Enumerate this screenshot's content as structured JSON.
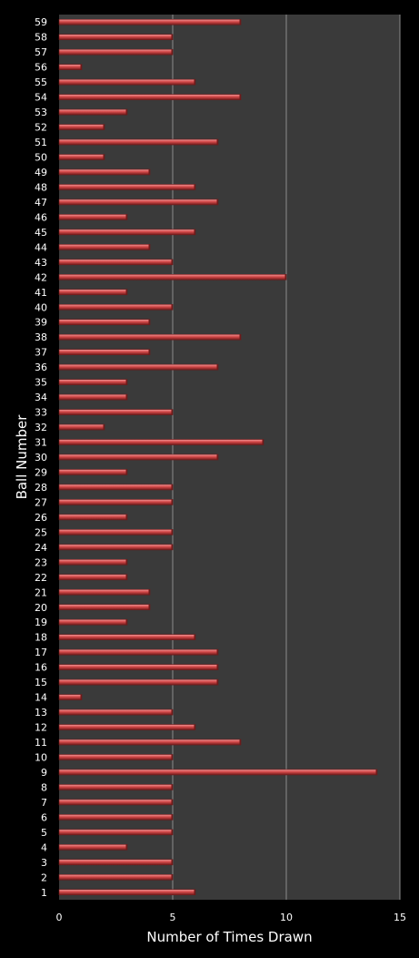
{
  "chart_data": {
    "type": "bar",
    "orientation": "horizontal",
    "xlabel": "Number of Times Drawn",
    "ylabel": "Ball Number",
    "xlim": [
      0,
      15
    ],
    "xticks": [
      "0",
      "5",
      "10",
      "15"
    ],
    "grid": "vertical",
    "legend": "none",
    "categories": [
      "1",
      "2",
      "3",
      "4",
      "5",
      "6",
      "7",
      "8",
      "9",
      "10",
      "11",
      "12",
      "13",
      "14",
      "15",
      "16",
      "17",
      "18",
      "19",
      "20",
      "21",
      "22",
      "23",
      "24",
      "25",
      "26",
      "27",
      "28",
      "29",
      "30",
      "31",
      "32",
      "33",
      "34",
      "35",
      "36",
      "37",
      "38",
      "39",
      "40",
      "41",
      "42",
      "43",
      "44",
      "45",
      "46",
      "47",
      "48",
      "49",
      "50",
      "51",
      "52",
      "53",
      "54",
      "55",
      "56",
      "57",
      "58",
      "59"
    ],
    "values": [
      6,
      5,
      5,
      3,
      5,
      5,
      5,
      5,
      14,
      5,
      8,
      6,
      5,
      1,
      7,
      7,
      7,
      6,
      3,
      4,
      4,
      3,
      3,
      5,
      5,
      3,
      5,
      5,
      3,
      7,
      9,
      2,
      5,
      3,
      3,
      7,
      4,
      8,
      4,
      5,
      3,
      10,
      5,
      4,
      6,
      3,
      7,
      6,
      4,
      2,
      7,
      2,
      3,
      8,
      6,
      1,
      5,
      5,
      8
    ],
    "colors": {
      "background": "#000000",
      "plot_area": "#3a3a3a",
      "gridline": "#8c8c8c",
      "bar_fill": "#d24848",
      "bar_highlight": "#f29a9a",
      "bar_shadow": "#6e1a1a",
      "text": "#ffffff"
    }
  }
}
